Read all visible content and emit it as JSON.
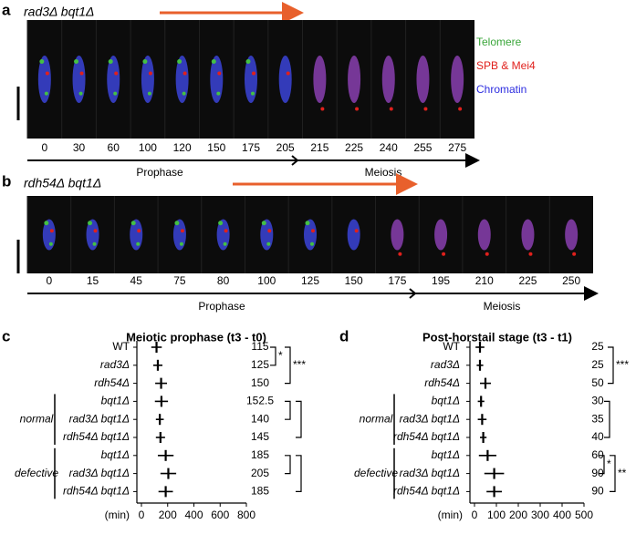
{
  "panels": [
    {
      "label": "a",
      "title": "rad3Δ bqt1Δ",
      "times": [
        "0",
        "30",
        "60",
        "100",
        "120",
        "150",
        "175",
        "205",
        "215",
        "225",
        "240",
        "255",
        "275"
      ],
      "stages": [
        "Prophase",
        "Meiosis"
      ]
    },
    {
      "label": "b",
      "title": "rdh54Δ bqt1Δ",
      "times": [
        "0",
        "15",
        "45",
        "75",
        "80",
        "100",
        "125",
        "150",
        "175",
        "195",
        "210",
        "225",
        "250"
      ],
      "stages": [
        "Prophase",
        "Meiosis"
      ]
    }
  ],
  "legend": [
    {
      "name": "Telomere",
      "color": "#3aa63a"
    },
    {
      "name": "SPB & Mei4",
      "color": "#e0201c"
    },
    {
      "name": "Chromatin",
      "color": "#2d2de0"
    }
  ],
  "chart_data": [
    {
      "type": "dot",
      "label": "c",
      "title": "Meiotic prophase (t3 - t0)",
      "categories": [
        "WT",
        "rad3Δ",
        "rdh54Δ",
        "bqt1Δ",
        "rad3Δ bqt1Δ",
        "rdh54Δ bqt1Δ",
        "bqt1Δ",
        "rad3Δ bqt1Δ",
        "rdh54Δ bqt1Δ"
      ],
      "groups": [
        "normal",
        "defective"
      ],
      "values": [
        115,
        125,
        150,
        152.5,
        140,
        145,
        185,
        205,
        185
      ],
      "errors": [
        40,
        35,
        45,
        50,
        30,
        35,
        60,
        60,
        55
      ],
      "color": "#8fd0e0",
      "xlim": [
        0,
        800
      ],
      "xticks": [
        0,
        200,
        400,
        600,
        800
      ],
      "xlabel": "(min)",
      "significance": [
        "*",
        "***"
      ]
    },
    {
      "type": "dot",
      "label": "d",
      "title": "Post-horstail stage (t3 - t1)",
      "categories": [
        "WT",
        "rad3Δ",
        "rdh54Δ",
        "bqt1Δ",
        "rad3Δ bqt1Δ",
        "rdh54Δ bqt1Δ",
        "bqt1Δ",
        "rad3Δ bqt1Δ",
        "rdh54Δ bqt1Δ"
      ],
      "groups": [
        "normal",
        "defective"
      ],
      "values": [
        25,
        25,
        50,
        30,
        35,
        40,
        60,
        90,
        90
      ],
      "errors": [
        20,
        15,
        25,
        15,
        20,
        15,
        40,
        45,
        35
      ],
      "color": "#8fd0e0",
      "xlim": [
        0,
        500
      ],
      "xticks": [
        0,
        100,
        200,
        300,
        400,
        500
      ],
      "xlabel": "(min)",
      "significance": [
        "***",
        "*",
        "**"
      ]
    }
  ]
}
